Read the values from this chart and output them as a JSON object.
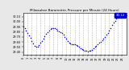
{
  "title": "Milwaukee Barometric Pressure per Minute (24 Hours)",
  "background_color": "#e8e8e8",
  "plot_bg_color": "#ffffff",
  "dot_color": "#0000ff",
  "dot_size": 1.2,
  "legend_color": "#0000cc",
  "legend_label": "30.12",
  "xlim": [
    0,
    1440
  ],
  "ylim": [
    29.35,
    30.18
  ],
  "yticks": [
    29.4,
    29.5,
    29.6,
    29.7,
    29.8,
    29.9,
    30.0,
    30.1
  ],
  "ytick_labels": [
    "29.40",
    "29.50",
    "29.60",
    "29.70",
    "29.80",
    "29.90",
    "30.00",
    "30.10"
  ],
  "xtick_positions": [
    0,
    60,
    120,
    180,
    240,
    300,
    360,
    420,
    480,
    540,
    600,
    660,
    720,
    780,
    840,
    900,
    960,
    1020,
    1080,
    1140,
    1200,
    1260,
    1320,
    1380
  ],
  "xtick_labels": [
    "0",
    "1",
    "2",
    "3",
    "4",
    "5",
    "6",
    "7",
    "8",
    "9",
    "10",
    "11",
    "12",
    "13",
    "14",
    "15",
    "16",
    "17",
    "18",
    "19",
    "20",
    "21",
    "22",
    "23"
  ],
  "grid_color": "#bbbbbb",
  "grid_style": "--",
  "data_x": [
    0,
    20,
    40,
    60,
    80,
    100,
    120,
    140,
    160,
    180,
    200,
    220,
    240,
    260,
    280,
    300,
    320,
    340,
    360,
    380,
    400,
    420,
    440,
    460,
    480,
    500,
    520,
    540,
    560,
    580,
    600,
    620,
    640,
    660,
    680,
    700,
    720,
    740,
    760,
    780,
    800,
    820,
    840,
    860,
    880,
    900,
    920,
    940,
    960,
    980,
    1000,
    1020,
    1040,
    1060,
    1080,
    1100,
    1120,
    1140,
    1160,
    1180,
    1200,
    1220,
    1240,
    1260,
    1280,
    1300,
    1320,
    1340,
    1360,
    1380,
    1400,
    1420,
    1440
  ],
  "data_y": [
    29.9,
    29.87,
    29.83,
    29.78,
    29.73,
    29.68,
    29.62,
    29.57,
    29.53,
    29.5,
    29.51,
    29.54,
    29.58,
    29.62,
    29.67,
    29.72,
    29.76,
    29.8,
    29.83,
    29.85,
    29.87,
    29.88,
    29.87,
    29.85,
    29.83,
    29.81,
    29.79,
    29.77,
    29.74,
    29.7,
    29.66,
    29.62,
    29.59,
    29.57,
    29.56,
    29.55,
    29.55,
    29.54,
    29.52,
    29.5,
    29.48,
    29.46,
    29.44,
    29.43,
    29.42,
    29.41,
    29.42,
    29.43,
    29.45,
    29.47,
    29.5,
    29.53,
    29.56,
    29.58,
    29.6,
    29.63,
    29.66,
    29.7,
    29.74,
    29.78,
    29.83,
    29.88,
    29.93,
    29.98,
    30.02,
    30.06,
    30.09,
    30.11,
    30.12,
    30.12,
    30.12,
    30.12,
    30.12
  ]
}
